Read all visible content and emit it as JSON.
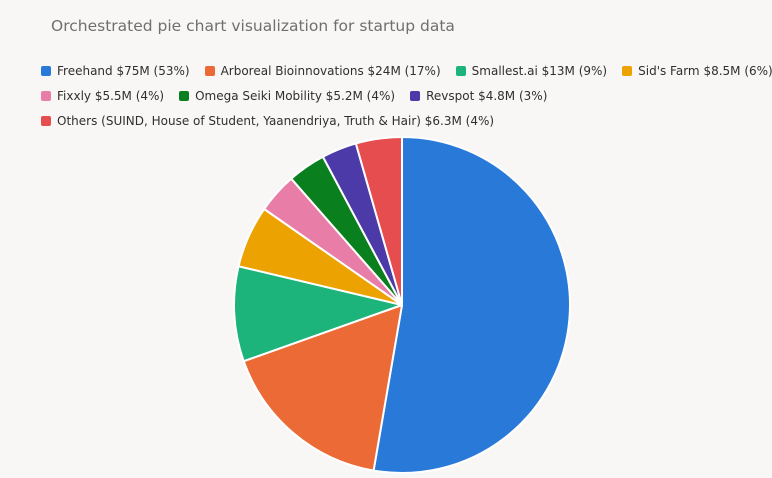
{
  "chart_data": {
    "type": "pie",
    "title": "Orchestrated pie chart visualization for startup data",
    "slices": [
      {
        "name": "Freehand",
        "value": 75,
        "percent": 53,
        "color": "#2979d9",
        "label": "Freehand $75M (53%)"
      },
      {
        "name": "Arboreal Bioinnovations",
        "value": 24,
        "percent": 17,
        "color": "#eb6a35",
        "label": "Arboreal Bioinnovations $24M (17%)"
      },
      {
        "name": "Smallest.ai",
        "value": 13,
        "percent": 9,
        "color": "#1db47c",
        "label": "Smallest.ai $13M (9%)"
      },
      {
        "name": "Sid's Farm",
        "value": 8.5,
        "percent": 6,
        "color": "#eca200",
        "label": "Sid's Farm $8.5M (6%)"
      },
      {
        "name": "Fixxly",
        "value": 5.5,
        "percent": 4,
        "color": "#e87ea8",
        "label": "Fixxly $5.5M (4%)"
      },
      {
        "name": "Omega Seiki Mobility",
        "value": 5.2,
        "percent": 4,
        "color": "#0a7f1d",
        "label": "Omega Seiki Mobility $5.2M (4%)"
      },
      {
        "name": "Revspot",
        "value": 4.8,
        "percent": 3,
        "color": "#4b3aa8",
        "label": "Revspot $4.8M (3%)"
      },
      {
        "name": "Others (SUIND, House of Student, Yaanendriya, Truth & Hair)",
        "value": 6.3,
        "percent": 4,
        "color": "#e64d4f",
        "label": "Others (SUIND, House of Student, Yaanendriya, Truth & Hair) $6.3M (4%)"
      }
    ],
    "legend_position": "top-left",
    "start_angle": "12 o'clock",
    "direction": "clockwise"
  }
}
